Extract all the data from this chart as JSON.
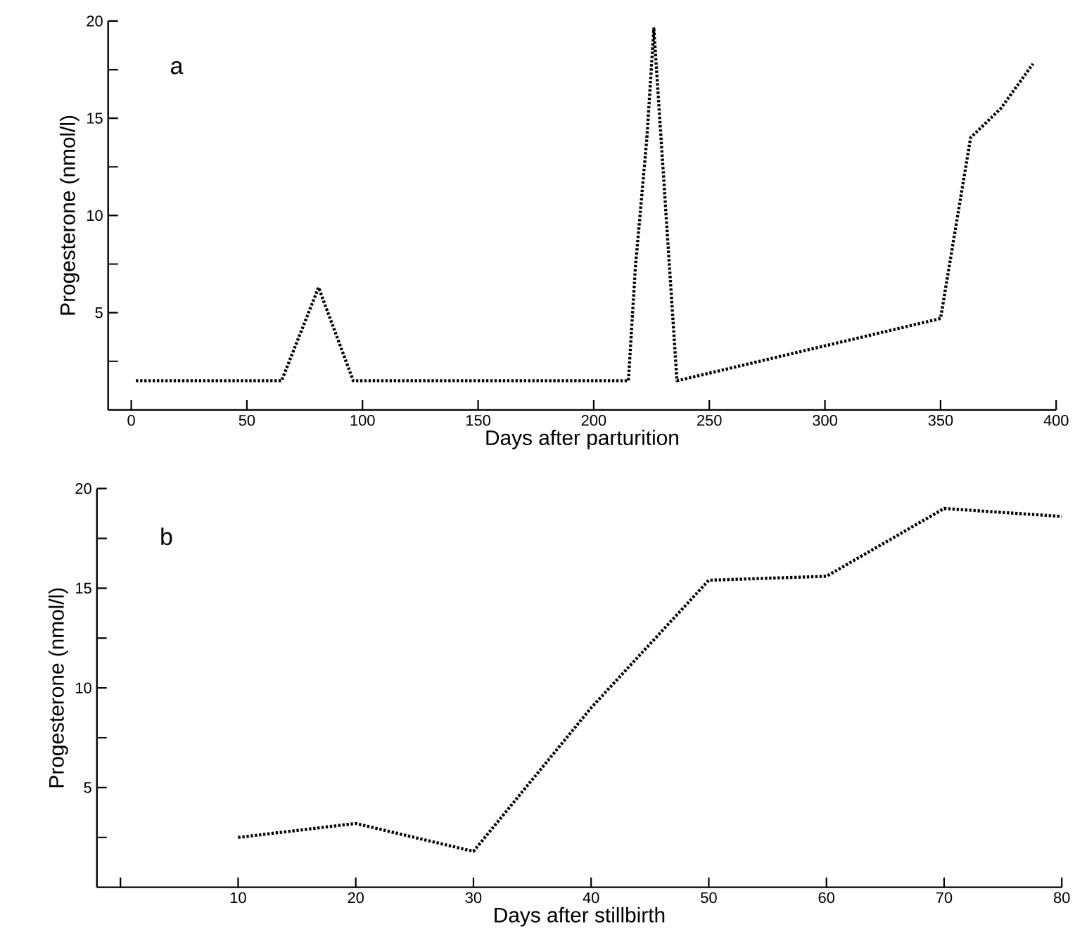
{
  "chart_data": [
    {
      "type": "line",
      "xlabel": "Days after parturition",
      "ylabel": "Progesterone (nmol/l)",
      "annotations": [
        "a"
      ],
      "marker": "none",
      "line_style": "dotted",
      "x": [
        2,
        65,
        81,
        96,
        215,
        218,
        223,
        226,
        236,
        350,
        363,
        376,
        390
      ],
      "series": [
        {
          "color": "#000000",
          "values": [
            1.5,
            1.5,
            6.3,
            1.5,
            1.5,
            7.3,
            14,
            19.6,
            1.5,
            4.7,
            14,
            15.5,
            17.8
          ]
        }
      ],
      "xlim": [
        -10,
        400
      ],
      "ylim": [
        0,
        20
      ],
      "xticks": [
        0,
        50,
        100,
        150,
        200,
        250,
        300,
        350,
        400
      ],
      "yticks": [
        {
          "value": 2.5,
          "label": null
        },
        5,
        {
          "value": 7.5,
          "label": null
        },
        10,
        {
          "value": 12.5,
          "label": null
        },
        15,
        {
          "value": 17.5,
          "label": null
        },
        20
      ]
    },
    {
      "type": "line",
      "xlabel": "Days after stillbirth",
      "ylabel": "Progesterone (nmol/l)",
      "annotations": [
        "b"
      ],
      "marker": "none",
      "line_style": "dotted",
      "x": [
        10,
        20,
        30,
        40,
        50,
        60,
        70,
        80
      ],
      "series": [
        {
          "color": "#000000",
          "values": [
            2.5,
            3.2,
            1.8,
            9.0,
            15.4,
            15.6,
            19.0,
            18.6
          ]
        }
      ],
      "xlim": [
        -2,
        80
      ],
      "ylim": [
        0,
        20
      ],
      "xticks": [
        {
          "value": 0,
          "label": null
        },
        10,
        20,
        30,
        40,
        50,
        60,
        70,
        80
      ],
      "yticks": [
        {
          "value": 2.5,
          "label": null
        },
        5,
        {
          "value": 7.5,
          "label": null
        },
        10,
        {
          "value": 12.5,
          "label": null
        },
        15,
        {
          "value": 17.5,
          "label": null
        },
        20
      ]
    }
  ]
}
